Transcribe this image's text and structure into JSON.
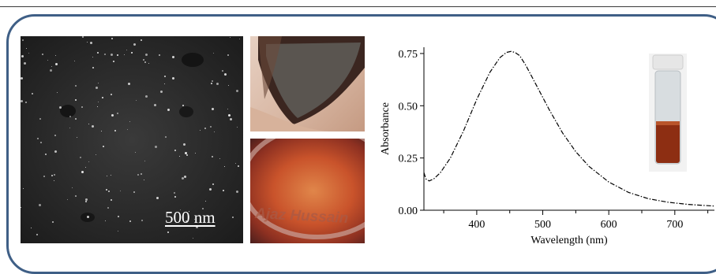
{
  "sem_panel": {
    "scale_bar_label": "500 nm"
  },
  "photo_bottom": {
    "watermark_text": "Ajaz Hussain"
  },
  "chart_data": {
    "type": "line",
    "title": "",
    "xlabel": "Wavelength (nm)",
    "ylabel": "Absorbance",
    "xlim": [
      320,
      760
    ],
    "ylim": [
      0,
      0.78
    ],
    "x_ticks": [
      400,
      500,
      600,
      700
    ],
    "y_ticks": [
      0.0,
      0.25,
      0.5,
      0.75
    ],
    "x_tick_labels": [
      "400",
      "500",
      "600",
      "700"
    ],
    "y_tick_labels": [
      "0.00",
      "0.25",
      "0.50",
      "0.75"
    ],
    "line_style": "dash-dot",
    "series": [
      {
        "x": [
          320,
          323,
          328,
          335,
          345,
          360,
          380,
          400,
          420,
          435,
          445,
          452,
          458,
          465,
          475,
          490,
          510,
          530,
          550,
          570,
          600,
          630,
          660,
          690,
          720,
          750,
          760
        ],
        "values": [
          0.18,
          0.15,
          0.14,
          0.15,
          0.18,
          0.25,
          0.38,
          0.53,
          0.66,
          0.73,
          0.755,
          0.76,
          0.755,
          0.74,
          0.69,
          0.6,
          0.48,
          0.37,
          0.28,
          0.21,
          0.135,
          0.085,
          0.055,
          0.038,
          0.028,
          0.022,
          0.02
        ]
      }
    ]
  },
  "colors": {
    "frame": "#3f5f86",
    "sem_background": "#2a2a2a",
    "solution": "#8d2e12"
  }
}
